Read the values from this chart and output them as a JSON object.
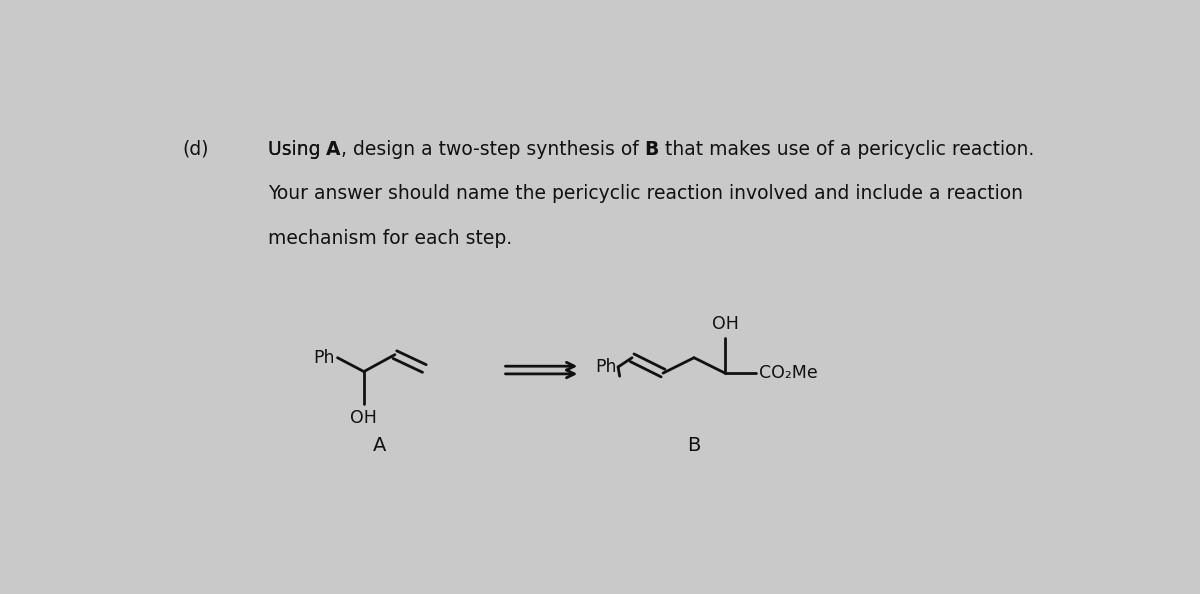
{
  "background_color": "#c9c9c9",
  "text_color": "#111111",
  "title_label": "(d)",
  "fig_width": 12.0,
  "fig_height": 5.94,
  "label_A": "A",
  "label_B": "B",
  "co2me": "CO₂Me"
}
